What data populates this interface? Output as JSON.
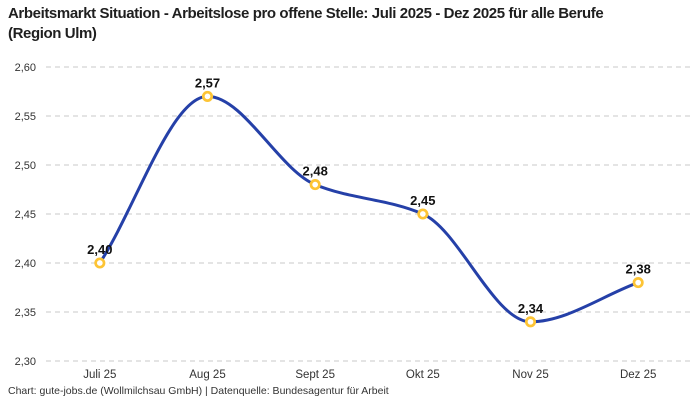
{
  "header": {
    "title": "Arbeitsmarkt Situation - Arbeitslose pro offene Stelle: Juli 2025 - Dez 2025 für alle Berufe (Region Ulm)"
  },
  "footer": {
    "credit": "Chart: gute-jobs.de (Wollmilchsau GmbH) | Datenquelle: Bundesagentur für Arbeit"
  },
  "chart_data": {
    "type": "line",
    "title": "Arbeitsmarkt Situation - Arbeitslose pro offene Stelle: Juli 2025 - Dez 2025 für alle Berufe (Region Ulm)",
    "categories": [
      "Juli 25",
      "Aug 25",
      "Sept 25",
      "Okt 25",
      "Nov 25",
      "Dez 25"
    ],
    "values": [
      2.4,
      2.57,
      2.48,
      2.45,
      2.34,
      2.38
    ],
    "point_labels": [
      "2,40",
      "2,57",
      "2,48",
      "2,45",
      "2,34",
      "2,38"
    ],
    "ylim": [
      2.3,
      2.6
    ],
    "yticks": [
      2.6,
      2.55,
      2.5,
      2.45,
      2.4,
      2.35,
      2.3
    ],
    "ytick_labels": [
      "2,60",
      "2,55",
      "2,50",
      "2,45",
      "2,40",
      "2,35",
      "2,30"
    ],
    "xlabel": "",
    "ylabel": "",
    "legend_position": "none",
    "grid": "horizontal-dashed",
    "line_style": "smooth-monotone-cubic",
    "colors": {
      "line": "#2540A8",
      "marker_ring": "#FDC435",
      "marker_fill": "#FFFFFF",
      "grid": "#C9C9C9",
      "point_label": "#111111",
      "axis_text": "#333333",
      "title": "#1F1F1F",
      "background": "#FFFFFF"
    }
  }
}
